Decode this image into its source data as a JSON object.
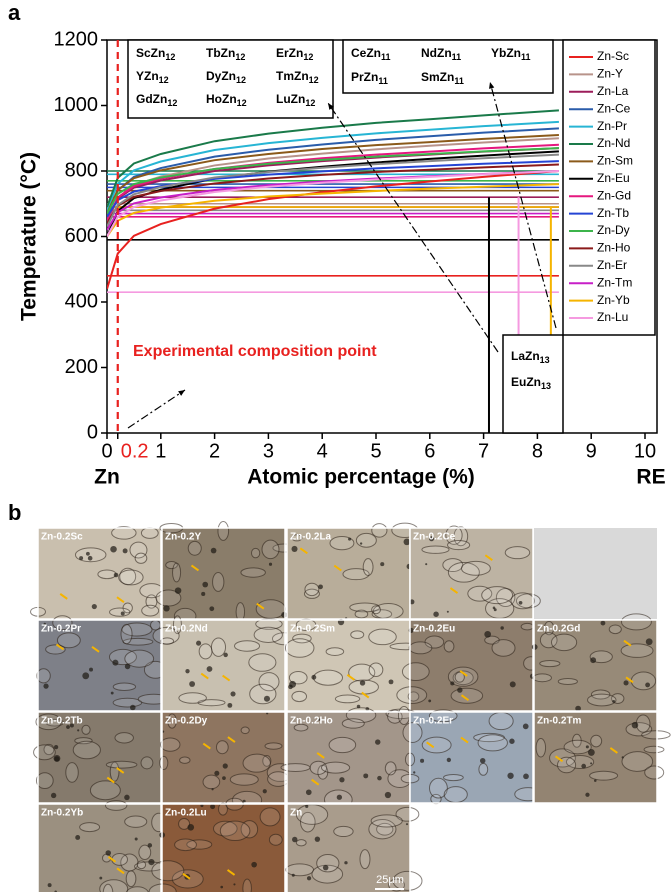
{
  "chart_data": {
    "type": "line",
    "panel_label": "a",
    "ylabel": "Temperature (°C)",
    "xlabel": "Atomic percentage (%)",
    "x_end_labels": {
      "left": "Zn",
      "right": "RE"
    },
    "annotation": "Experimental composition point",
    "composition_line": {
      "x": 0.2,
      "color": "#e8211f"
    },
    "xlim": [
      0,
      10
    ],
    "ylim": [
      0,
      1200
    ],
    "xticks": [
      0,
      0.2,
      1,
      2,
      3,
      4,
      5,
      6,
      7,
      8,
      9,
      10
    ],
    "yticks": [
      0,
      200,
      400,
      600,
      800,
      1000,
      1200
    ],
    "x": [
      0,
      0.2,
      0.5,
      1,
      2,
      3,
      4,
      5,
      6,
      7,
      8.4
    ],
    "series": [
      {
        "name": "Zn-Sc",
        "color": "#e8211f",
        "eutectic": 480,
        "values": [
          440,
          548,
          602,
          638,
          685,
          714,
          735,
          753,
          768,
          782,
          800
        ]
      },
      {
        "name": "Zn-Y",
        "color": "#b8938a",
        "eutectic": 700,
        "values": [
          640,
          718,
          757,
          783,
          817,
          838,
          853,
          866,
          877,
          887,
          900
        ]
      },
      {
        "name": "Zn-La",
        "color": "#9c1d5a",
        "eutectic": 720,
        "values": [
          650,
          716,
          749,
          771,
          800,
          817,
          830,
          841,
          850,
          859,
          870
        ]
      },
      {
        "name": "Zn-Ce",
        "color": "#2a5caa",
        "eutectic": 760,
        "values": [
          660,
          741,
          782,
          809,
          844,
          865,
          881,
          895,
          906,
          917,
          930
        ]
      },
      {
        "name": "Zn-Pr",
        "color": "#27b5d4",
        "eutectic": 790,
        "values": [
          680,
          761,
          802,
          829,
          864,
          885,
          901,
          915,
          926,
          937,
          950
        ]
      },
      {
        "name": "Zn-Nd",
        "color": "#1a7a4a",
        "eutectic": 800,
        "values": [
          690,
          779,
          823,
          852,
          891,
          914,
          932,
          947,
          958,
          970,
          985
        ]
      },
      {
        "name": "Zn-Sm",
        "color": "#8b5a1a",
        "eutectic": 740,
        "values": [
          670,
          742,
          778,
          802,
          833,
          852,
          867,
          879,
          888,
          898,
          910
        ]
      },
      {
        "name": "Zn-Eu",
        "color": "#000000",
        "eutectic": 590,
        "values": [
          600,
          678,
          717,
          743,
          777,
          798,
          813,
          826,
          837,
          847,
          860
        ]
      },
      {
        "name": "Zn-Gd",
        "color": "#e5177f",
        "eutectic": 660,
        "values": [
          650,
          719,
          754,
          777,
          806,
          825,
          839,
          850,
          859,
          869,
          880
        ]
      },
      {
        "name": "Zn-Tb",
        "color": "#2545d4",
        "eutectic": 750,
        "values": [
          660,
          711,
          737,
          754,
          776,
          789,
          799,
          808,
          815,
          822,
          830
        ]
      },
      {
        "name": "Zn-Dy",
        "color": "#3cb44b",
        "eutectic": 770,
        "values": [
          670,
          730,
          760,
          780,
          806,
          822,
          834,
          844,
          852,
          860,
          870
        ]
      },
      {
        "name": "Zn-Ho",
        "color": "#8b1a1a",
        "eutectic": 690,
        "values": [
          640,
          694,
          721,
          739,
          762,
          777,
          788,
          797,
          804,
          811,
          820
        ]
      },
      {
        "name": "Zn-Er",
        "color": "#888888",
        "eutectic": 680,
        "values": [
          630,
          696,
          729,
          751,
          780,
          797,
          810,
          821,
          830,
          839,
          850
        ]
      },
      {
        "name": "Zn-Tm",
        "color": "#c71fc7",
        "eutectic": 670,
        "values": [
          620,
          674,
          701,
          719,
          742,
          757,
          768,
          777,
          784,
          791,
          800
        ]
      },
      {
        "name": "Zn-Yb",
        "color": "#f5b400",
        "eutectic": 690,
        "values": [
          600,
          648,
          672,
          688,
          709,
          722,
          731,
          739,
          746,
          752,
          760
        ]
      },
      {
        "name": "Zn-Lu",
        "color": "#f59ae0",
        "eutectic": 430,
        "values": [
          600,
          660,
          690,
          710,
          736,
          752,
          764,
          774,
          782,
          790,
          800
        ]
      }
    ],
    "compound_lines": [
      {
        "x": 7.1,
        "top": 720,
        "color": "#000000"
      },
      {
        "x": 7.65,
        "top": 720,
        "color": "#f59ae0"
      },
      {
        "x": 8.25,
        "top": 690,
        "color": "#f5b400"
      }
    ],
    "phase_labels": [
      [
        {
          "formula": "ScZn",
          "sub": "12"
        },
        {
          "formula": "TbZn",
          "sub": "12"
        },
        {
          "formula": "ErZn",
          "sub": "12"
        },
        {
          "formula": "YZn",
          "sub": "12"
        },
        {
          "formula": "DyZn",
          "sub": "12"
        },
        {
          "formula": "TmZn",
          "sub": "12"
        },
        {
          "formula": "GdZn",
          "sub": "12"
        },
        {
          "formula": "HoZn",
          "sub": "12"
        },
        {
          "formula": "LuZn",
          "sub": "12"
        }
      ],
      [
        {
          "formula": "CeZn",
          "sub": "11"
        },
        {
          "formula": "NdZn",
          "sub": "11"
        },
        {
          "formula": "YbZn",
          "sub": "11"
        },
        {
          "formula": "PrZn",
          "sub": "11"
        },
        {
          "formula": "SmZn",
          "sub": "11"
        }
      ],
      [
        {
          "formula": "LaZn",
          "sub": "13"
        },
        {
          "formula": "EuZn",
          "sub": "13"
        }
      ]
    ]
  },
  "micrographs": {
    "panel_label": "b",
    "tiles": [
      "Zn-0.2Sc",
      "Zn-0.2Y",
      "Zn-0.2La",
      "Zn-0.2Ce",
      "Zn-0.2Pr",
      "Zn-0.2Nd",
      "Zn-0.2Sm",
      "Zn-0.2Eu",
      "Zn-0.2Gd",
      "Zn-0.2Tb",
      "Zn-0.2Dy",
      "Zn-0.2Ho",
      "Zn-0.2Er",
      "Zn-0.2Tm",
      "Zn-0.2Yb",
      "Zn-0.2Lu",
      "Zn"
    ],
    "scale_bar": "25μm"
  }
}
